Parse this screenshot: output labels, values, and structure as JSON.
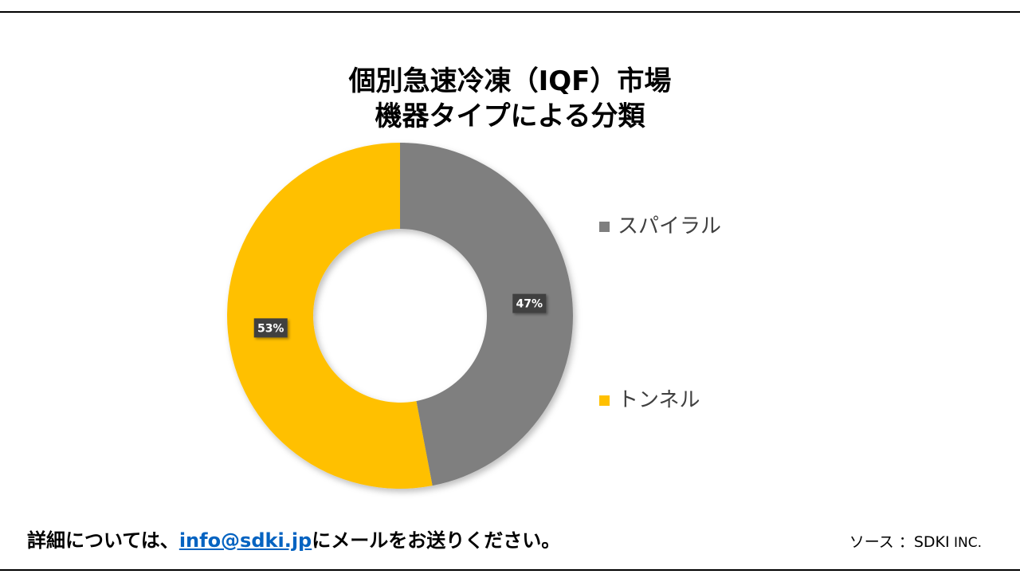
{
  "title": {
    "line1": "個別急速冷凍（IQF）市場",
    "line2": "機器タイプによる分類"
  },
  "chart_data": {
    "type": "pie",
    "variant": "donut",
    "title": "個別急速冷凍（IQF）市場 機器タイプによる分類",
    "series": [
      {
        "name": "スパイラル",
        "value": 47,
        "label": "47%",
        "color": "#7f7f7f"
      },
      {
        "name": "トンネル",
        "value": 53,
        "label": "53%",
        "color": "#ffc000"
      }
    ],
    "legend_position": "right"
  },
  "footer": {
    "note_prefix": "詳細については、",
    "email": "info@sdki.jp",
    "note_suffix": "にメールをお送りください。",
    "source_label": "ソース ：SDKI",
    "source_suffix": " INC."
  },
  "colors": {
    "label_box": "#404040",
    "label_text": "#ffffff",
    "link": "#0563c1"
  }
}
